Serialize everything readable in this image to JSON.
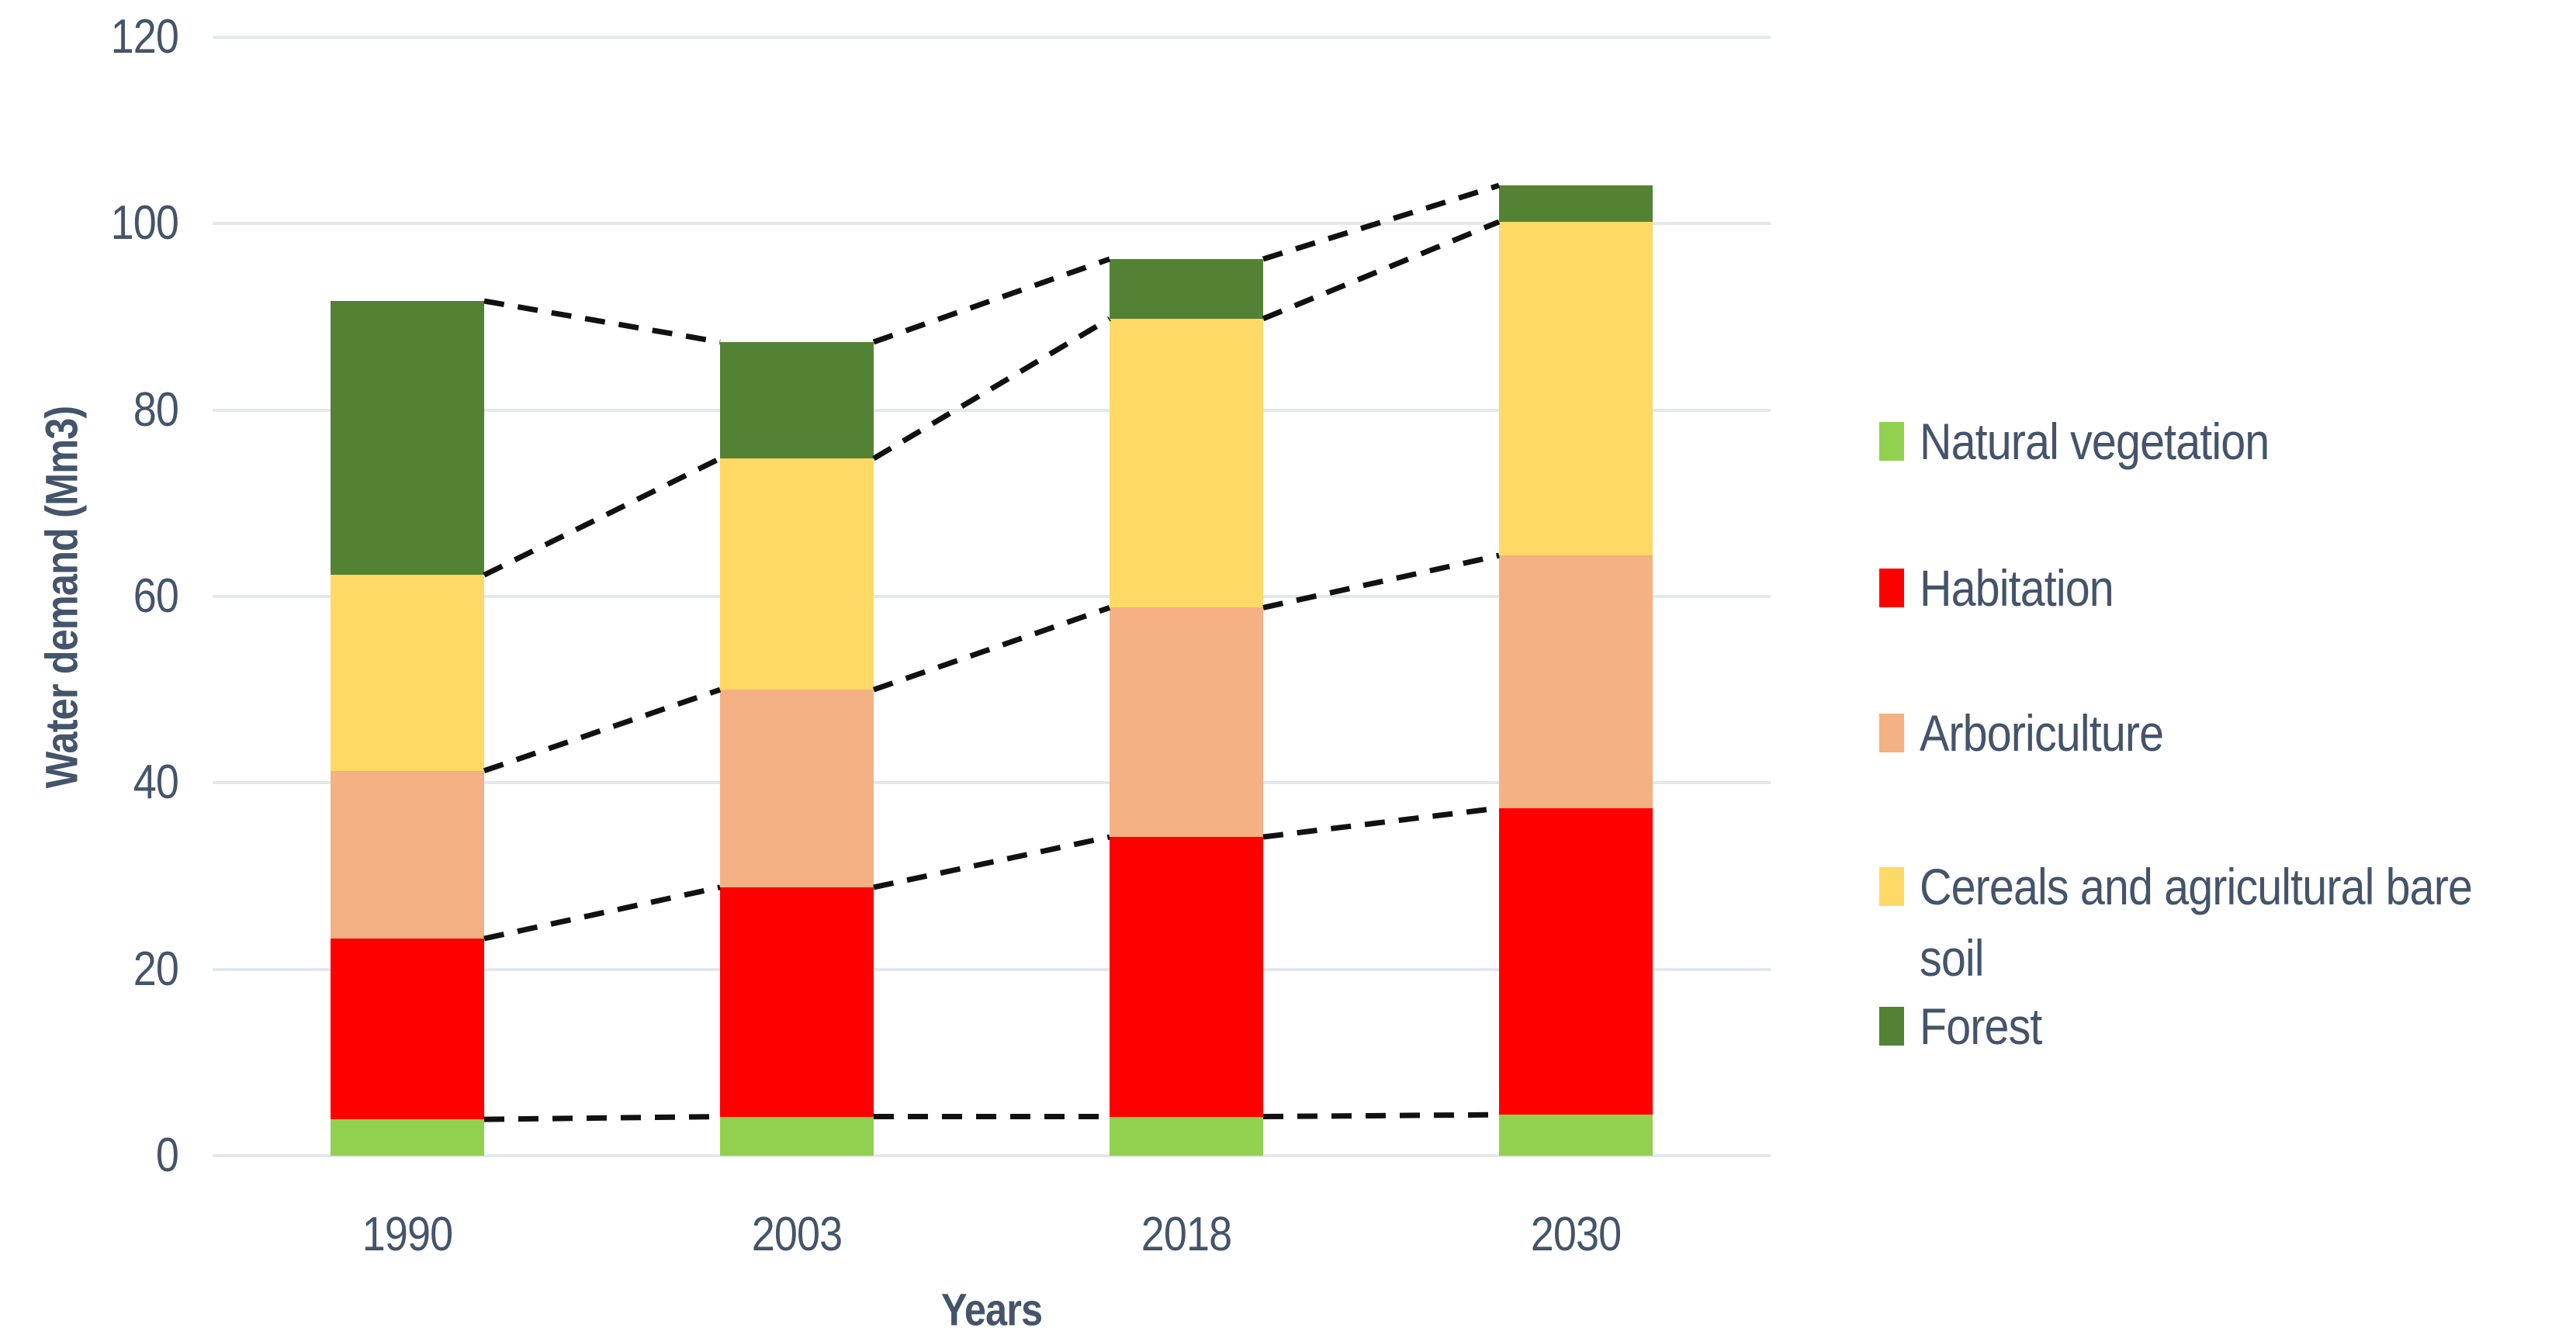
{
  "y_axis": {
    "title": "Water demand (Mm3)",
    "ticks": [
      "0",
      "20",
      "40",
      "60",
      "80",
      "100",
      "120"
    ]
  },
  "x_axis": {
    "title": "Years",
    "categories": [
      "1990",
      "2003",
      "2018",
      "2030"
    ]
  },
  "legend": {
    "items": [
      {
        "label": "Natural vegetation",
        "color": "#92D050"
      },
      {
        "label": "Habitation",
        "color": "#FF0000"
      },
      {
        "label": "Arboriculture",
        "color": "#F4B183"
      },
      {
        "label": "Cereals and agricultural bare soil",
        "color": "#FFD966"
      },
      {
        "label": "Forest",
        "color": "#548235"
      }
    ]
  },
  "colors": {
    "text": "#44546A",
    "gridline": "#E3E7EE",
    "connector": "#111111",
    "background": "#FFFFFF"
  },
  "chart_data": {
    "type": "bar",
    "subtype": "stacked-column",
    "categories": [
      "1990",
      "2003",
      "2018",
      "2030"
    ],
    "series": [
      {
        "name": "Natural vegetation",
        "color": "#92D050",
        "values": [
          3.9,
          4.2,
          4.2,
          4.4
        ]
      },
      {
        "name": "Habitation",
        "color": "#FF0000",
        "values": [
          19.4,
          24.6,
          30.0,
          32.9
        ]
      },
      {
        "name": "Arboriculture",
        "color": "#F4B183",
        "values": [
          18.0,
          21.2,
          24.6,
          27.1
        ]
      },
      {
        "name": "Cereals and agricultural bare soil",
        "color": "#FFD966",
        "values": [
          21.0,
          24.8,
          31.0,
          35.8
        ]
      },
      {
        "name": "Forest",
        "color": "#548235",
        "values": [
          29.4,
          12.5,
          6.4,
          3.9
        ]
      }
    ],
    "stack_totals": [
      91.6,
      87.3,
      96.2,
      104.1
    ],
    "title": "",
    "xlabel": "Years",
    "ylabel": "Water demand (Mm3)",
    "ylim": [
      0,
      120
    ],
    "ytick_step": 20,
    "grid": true,
    "legend_position": "right",
    "annotations": "black dashed lines connect each cumulative stack boundary between adjacent bars"
  }
}
